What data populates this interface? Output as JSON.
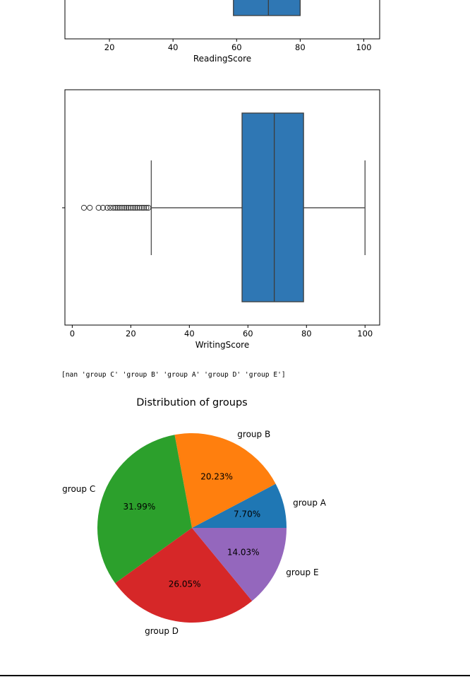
{
  "output_text": "[nan 'group C' 'group B' 'group A' 'group D' 'group E']",
  "chart_data": [
    {
      "type": "box",
      "xlabel": "ReadingScore",
      "xlim": [
        6,
        105
      ],
      "xticks": [
        20,
        40,
        60,
        80,
        100
      ],
      "q1": 59,
      "median": 70,
      "q3": 80,
      "color": "#2f77b4",
      "partially_visible": true
    },
    {
      "type": "box",
      "xlabel": "WritingScore",
      "xlim": [
        -2.5,
        105
      ],
      "xticks": [
        0,
        20,
        40,
        60,
        80,
        100
      ],
      "whisker_low": 27,
      "q1": 58,
      "median": 69,
      "q3": 79,
      "whisker_high": 100,
      "outliers": [
        4,
        6,
        9,
        10.5,
        12,
        13,
        14,
        14.8,
        15.5,
        16.2,
        17,
        17.8,
        18.5,
        19.2,
        20,
        20.8,
        21.5,
        22.2,
        23,
        23.8,
        24.5,
        25.3,
        26
      ],
      "color": "#2f77b4"
    },
    {
      "type": "pie",
      "title": "Distribution of groups",
      "slices": [
        {
          "label": "group A",
          "value": 7.7,
          "pct": "7.70%",
          "color": "#1f77b4"
        },
        {
          "label": "group B",
          "value": 20.23,
          "pct": "20.23%",
          "color": "#ff7f0e"
        },
        {
          "label": "group C",
          "value": 31.99,
          "pct": "31.99%",
          "color": "#2ca02c"
        },
        {
          "label": "group D",
          "value": 26.05,
          "pct": "26.05%",
          "color": "#d62728"
        },
        {
          "label": "group E",
          "value": 14.03,
          "pct": "14.03%",
          "color": "#9467bd"
        }
      ]
    }
  ]
}
